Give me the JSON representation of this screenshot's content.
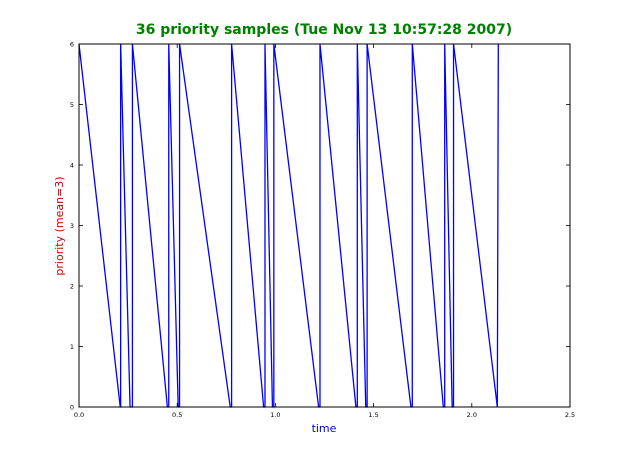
{
  "chart_data": {
    "type": "line",
    "title": "36 priority samples (Tue Nov 13 10:57:28 2007)",
    "xlabel": "time",
    "ylabel": "priority (mean=3)",
    "xlim": [
      0,
      2.5
    ],
    "ylim": [
      0,
      6
    ],
    "grid": false,
    "xticks": [
      "0.0",
      "0.5",
      "1.0",
      "1.5",
      "2.0",
      "2.5"
    ],
    "yticks": [
      "0",
      "1",
      "2",
      "3",
      "4",
      "5",
      "6"
    ],
    "colors": {
      "line": "#0000ff",
      "title": "#008000",
      "xlabel": "#0000cc",
      "ylabel": "#cc0000",
      "axes": "#000000"
    },
    "series": [
      {
        "x": [
          0.0,
          0.21,
          0.212,
          0.212,
          0.26,
          0.27,
          0.272,
          0.272,
          0.45,
          0.455,
          0.457,
          0.457,
          0.505,
          0.51,
          0.512,
          0.512,
          0.77,
          0.775,
          0.777,
          0.777,
          0.94,
          0.945,
          0.947,
          0.947,
          0.985,
          0.99,
          0.992,
          0.992,
          1.22,
          1.225,
          1.227,
          1.227,
          1.41,
          1.415,
          1.417,
          1.417,
          1.46,
          1.465,
          1.467,
          1.467,
          1.69,
          1.695,
          1.697,
          1.697,
          1.855,
          1.86,
          1.862,
          1.862,
          1.9,
          1.905,
          1.907,
          1.907,
          2.13,
          2.135
        ],
        "y": [
          6,
          0,
          0,
          6,
          0,
          0,
          0,
          6,
          0,
          0,
          0,
          6,
          0,
          0,
          0,
          6,
          0,
          0,
          0,
          6,
          0,
          0,
          0,
          6,
          0,
          0,
          0,
          6,
          0,
          0,
          0,
          6,
          0,
          0,
          0,
          6,
          0,
          0,
          0,
          6,
          0,
          0,
          0,
          6,
          0,
          0,
          0,
          6,
          0,
          0,
          0,
          6,
          0,
          6
        ]
      }
    ]
  }
}
